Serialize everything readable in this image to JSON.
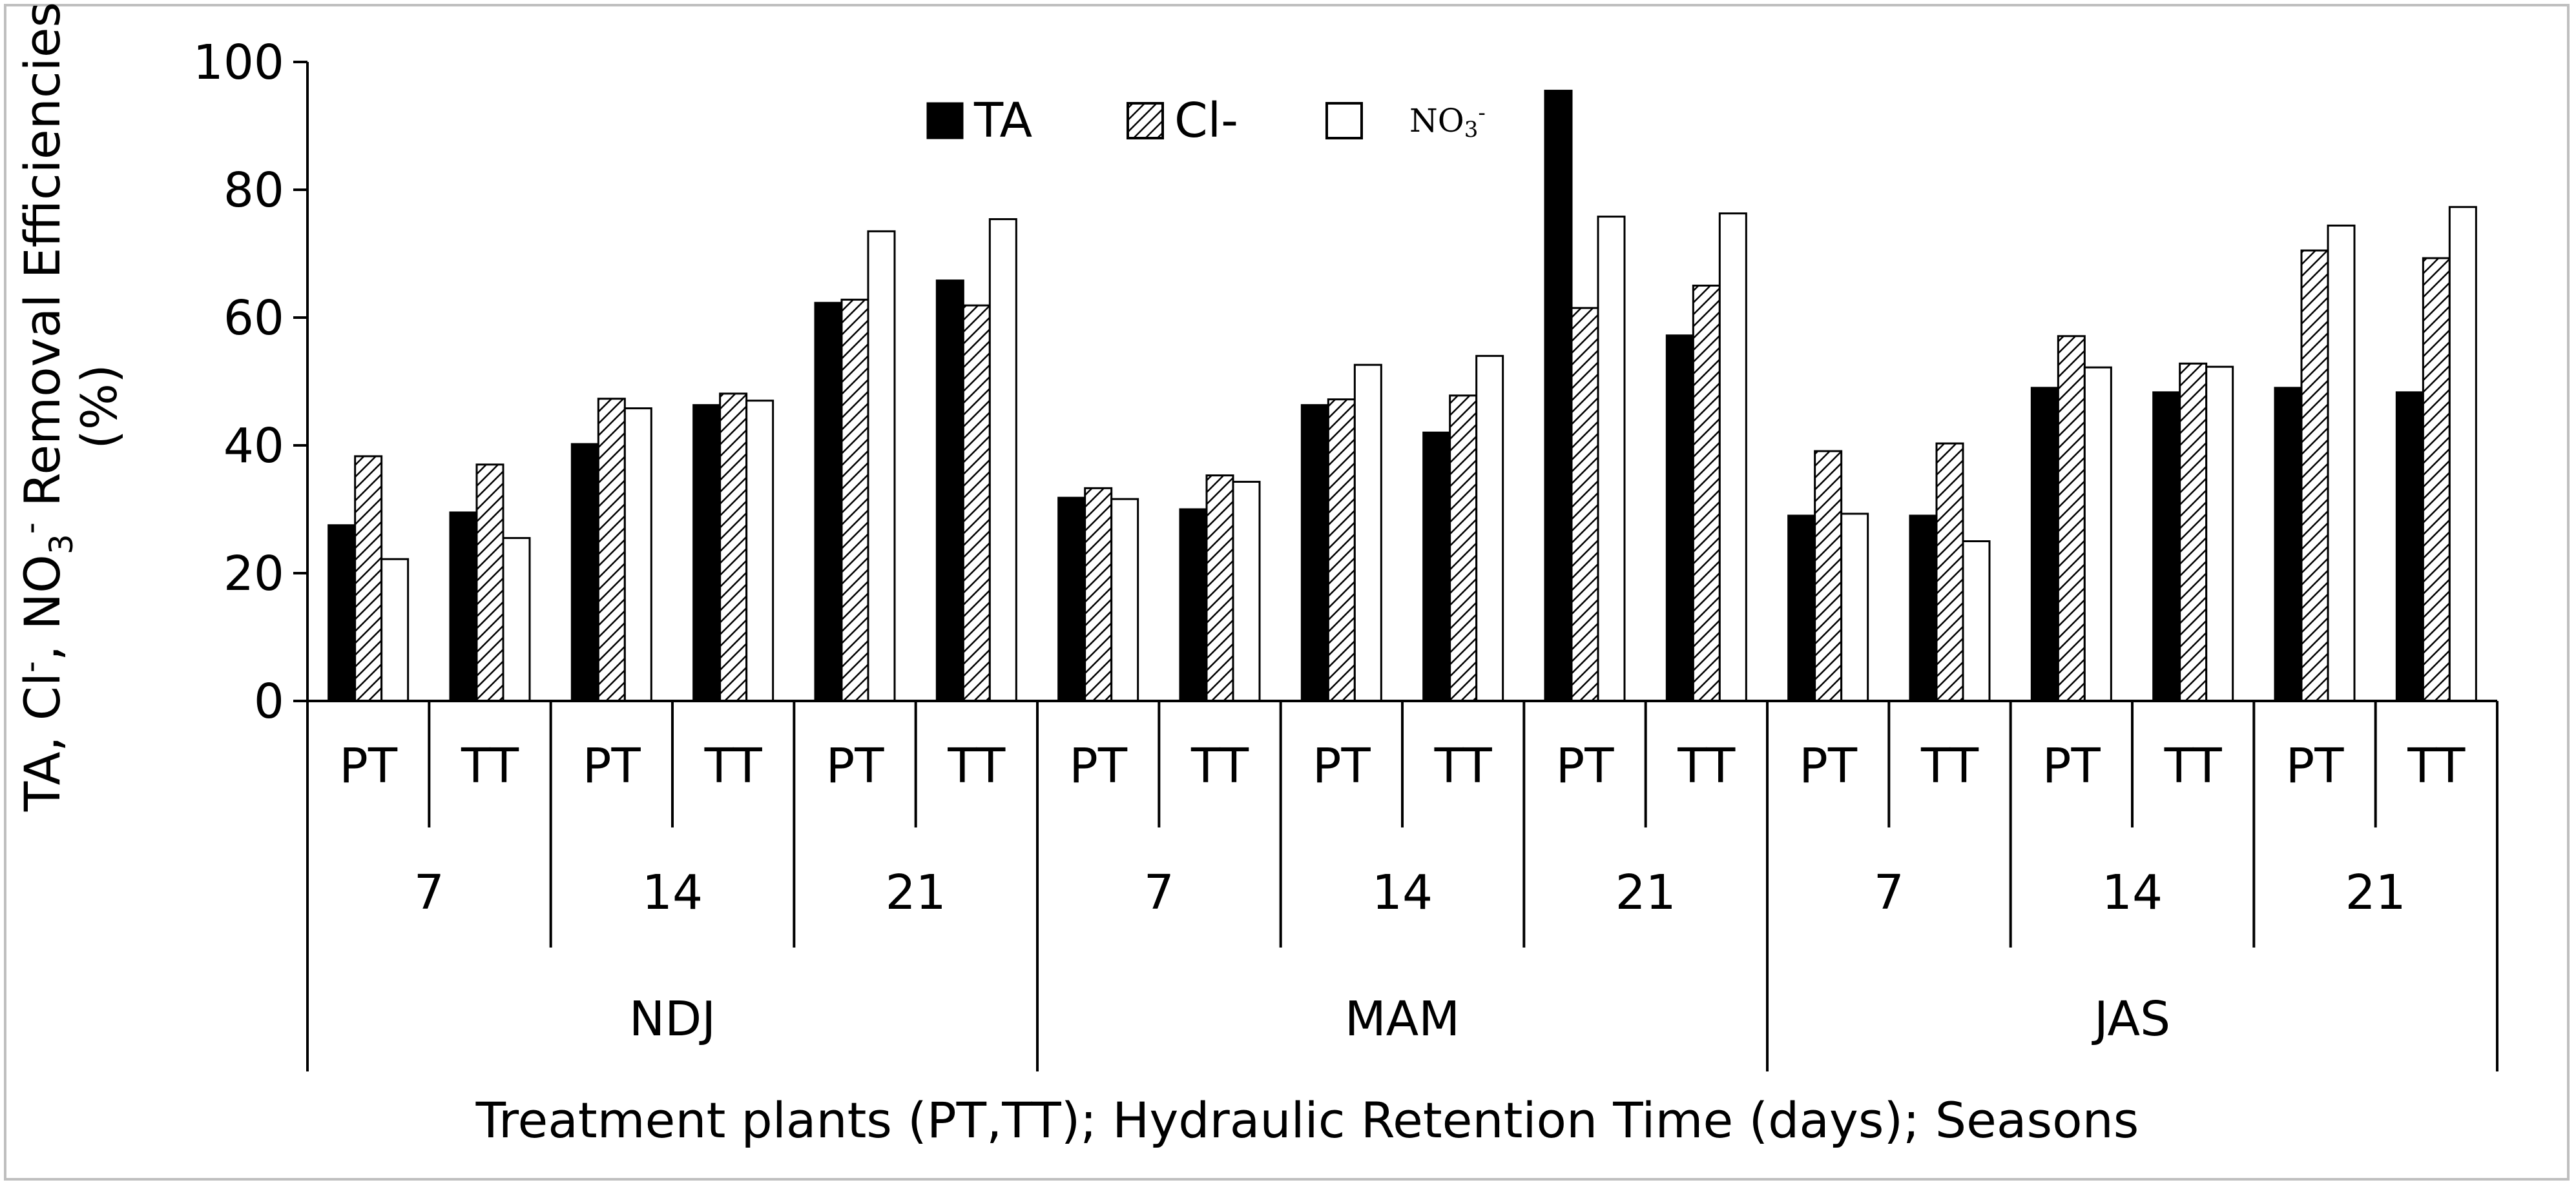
{
  "chart_data": {
    "type": "bar",
    "title": "",
    "ylabel_parts": {
      "prefix": "TA, Cl",
      "sup1": "-",
      "mid": ", NO",
      "sub": "3",
      "sup2": "-",
      "suffix": " Removal Efficiencies",
      "line2": "(%)"
    },
    "xlabel": "Treatment plants (PT,TT); Hydraulic Retention Time (days); Seasons",
    "ylim": [
      0,
      100
    ],
    "yticks": [
      0,
      20,
      40,
      60,
      80,
      100
    ],
    "categories": [
      {
        "season": "NDJ",
        "hrt": "7",
        "plant": "PT"
      },
      {
        "season": "NDJ",
        "hrt": "7",
        "plant": "TT"
      },
      {
        "season": "NDJ",
        "hrt": "14",
        "plant": "PT"
      },
      {
        "season": "NDJ",
        "hrt": "14",
        "plant": "TT"
      },
      {
        "season": "NDJ",
        "hrt": "21",
        "plant": "PT"
      },
      {
        "season": "NDJ",
        "hrt": "21",
        "plant": "TT"
      },
      {
        "season": "MAM",
        "hrt": "7",
        "plant": "PT"
      },
      {
        "season": "MAM",
        "hrt": "7",
        "plant": "TT"
      },
      {
        "season": "MAM",
        "hrt": "14",
        "plant": "PT"
      },
      {
        "season": "MAM",
        "hrt": "14",
        "plant": "TT"
      },
      {
        "season": "MAM",
        "hrt": "21",
        "plant": "PT"
      },
      {
        "season": "MAM",
        "hrt": "21",
        "plant": "TT"
      },
      {
        "season": "JAS",
        "hrt": "7",
        "plant": "PT"
      },
      {
        "season": "JAS",
        "hrt": "7",
        "plant": "TT"
      },
      {
        "season": "JAS",
        "hrt": "14",
        "plant": "PT"
      },
      {
        "season": "JAS",
        "hrt": "14",
        "plant": "TT"
      },
      {
        "season": "JAS",
        "hrt": "21",
        "plant": "PT"
      },
      {
        "season": "JAS",
        "hrt": "21",
        "plant": "TT"
      }
    ],
    "series": [
      {
        "name": "TA",
        "legend": "TA",
        "fill": "solid",
        "values": [
          27.5,
          29.5,
          40.2,
          46.3,
          62.3,
          65.8,
          31.8,
          30.0,
          46.3,
          42.0,
          95.5,
          57.2,
          29.0,
          29.0,
          49.0,
          48.3,
          49.0,
          48.3
        ]
      },
      {
        "name": "Cl-",
        "legend": "Cl-",
        "fill": "hatched",
        "values": [
          38.3,
          37.0,
          47.3,
          48.1,
          62.8,
          61.9,
          33.3,
          35.3,
          47.2,
          47.8,
          61.5,
          65.0,
          39.1,
          40.3,
          57.1,
          52.8,
          70.5,
          69.3
        ]
      },
      {
        "name": "NO3-",
        "legend": "NO",
        "legend_sub": "3",
        "legend_sup": "-",
        "fill": "white",
        "values": [
          22.2,
          25.5,
          45.8,
          47.0,
          73.5,
          75.4,
          31.6,
          34.3,
          52.6,
          54.0,
          75.8,
          76.3,
          29.3,
          25.0,
          52.2,
          52.3,
          74.4,
          77.3
        ]
      }
    ],
    "colors": {
      "bar_solid": "#000000",
      "bar_white": "#ffffff",
      "stroke": "#000000",
      "frame": "#bfbfbf"
    },
    "legend_placement": "top-center"
  }
}
